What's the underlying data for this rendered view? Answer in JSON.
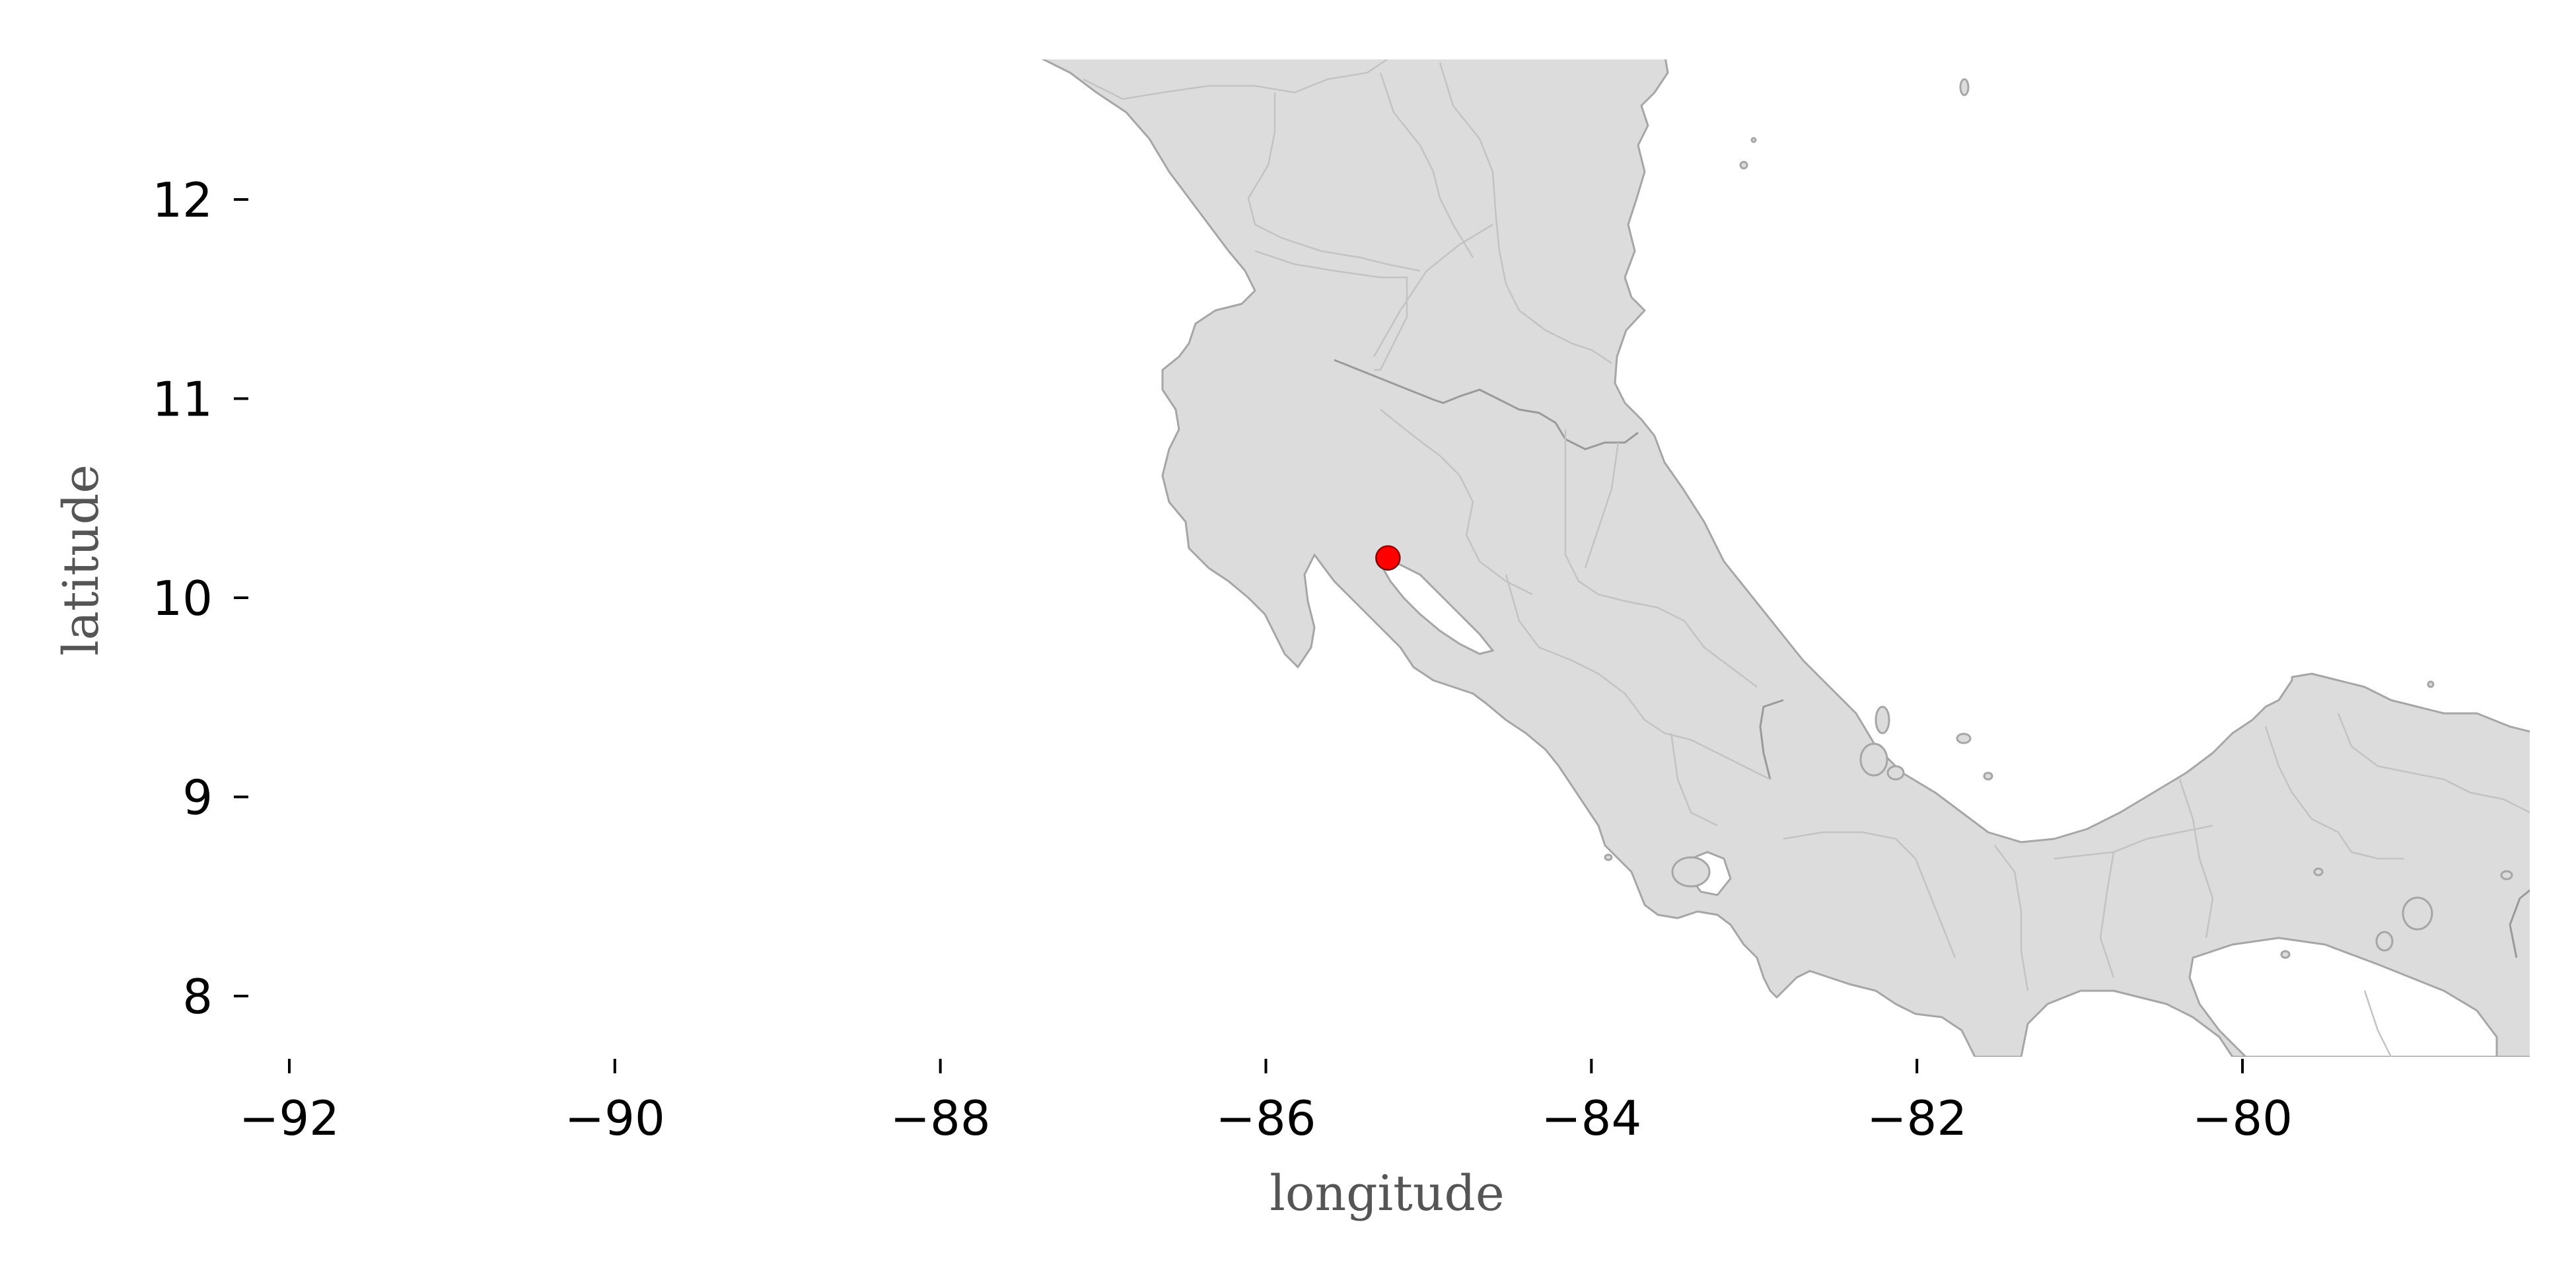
{
  "map": {
    "xlabel": "longitude",
    "ylabel": "latitude",
    "lon_range": [
      -92.2,
      -78.1
    ],
    "lat_range": [
      7.7,
      12.7
    ],
    "x_ticks": [
      -92,
      -90,
      -88,
      -86,
      -84,
      -82,
      -80
    ],
    "x_tick_labels": [
      "−92",
      "−90",
      "−88",
      "−86",
      "−84",
      "−82",
      "−80"
    ],
    "y_ticks": [
      8,
      9,
      10,
      11,
      12
    ],
    "y_tick_labels": [
      "8",
      "9",
      "10",
      "11",
      "12"
    ],
    "land_color": "#dcdcdc",
    "coast_color": "#a6a6a6",
    "marker": {
      "lon": -85.25,
      "lat": 10.2,
      "color": "#ff0000",
      "edge_color": "#8b0000"
    }
  }
}
